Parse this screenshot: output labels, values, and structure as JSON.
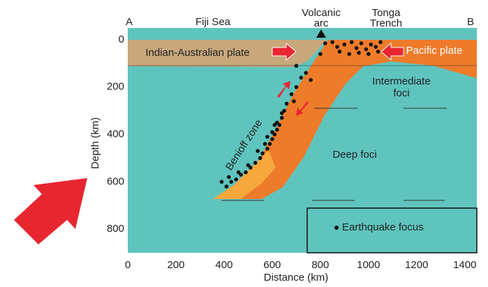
{
  "chart_data": {
    "type": "scatter",
    "x_label": "Distance (km)",
    "y_label": "Depth (km)",
    "xlim": [
      0,
      1450
    ],
    "ylim": [
      -50,
      900
    ],
    "xticks": [
      0,
      200,
      400,
      600,
      800,
      1000,
      1200,
      1400
    ],
    "yticks": [
      0,
      200,
      400,
      600,
      800
    ],
    "y_inverted": true,
    "color": "#111111",
    "x": [
      820,
      850,
      870,
      800,
      900,
      930,
      950,
      970,
      990,
      1010,
      1030,
      1050,
      880,
      920,
      960,
      1000,
      1040,
      700,
      740,
      760,
      720,
      700,
      680,
      690,
      660,
      650,
      640,
      630,
      620,
      610,
      600,
      590,
      580,
      560,
      550,
      530,
      510,
      490,
      470,
      450,
      430,
      410,
      390,
      420,
      460,
      500,
      540,
      570,
      600,
      620,
      640,
      610,
      580
    ],
    "y": [
      15,
      10,
      30,
      60,
      20,
      10,
      35,
      15,
      40,
      20,
      30,
      10,
      50,
      60,
      55,
      60,
      50,
      110,
      140,
      170,
      160,
      200,
      230,
      260,
      270,
      300,
      330,
      360,
      380,
      400,
      420,
      440,
      460,
      480,
      500,
      520,
      540,
      560,
      570,
      590,
      600,
      620,
      600,
      580,
      560,
      530,
      470,
      440,
      390,
      350,
      310,
      360,
      410
    ],
    "labels": {
      "A": "A",
      "fiji": "Fiji Sea",
      "volcanic": [
        "Volcanic",
        "arc"
      ],
      "tonga": [
        "Tonga",
        "Trench"
      ],
      "B": "B",
      "indian": "Indian-Australian plate",
      "pacific": "Pacific plate",
      "intermediate": [
        "Intermediate",
        "foci"
      ],
      "deep": "Deep foci",
      "benioff": "Benioff zone",
      "legend": "Earthquake focus"
    }
  }
}
